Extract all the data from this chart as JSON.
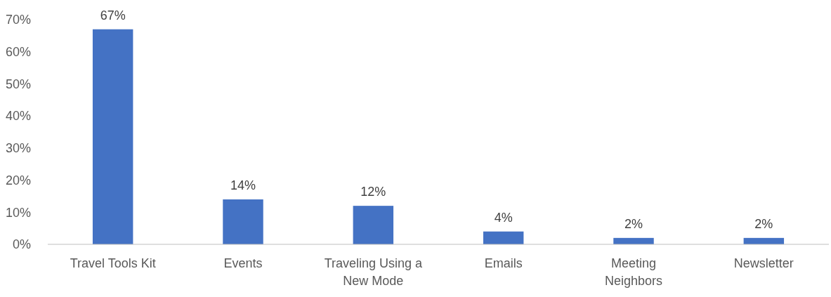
{
  "chart_data": {
    "type": "bar",
    "categories": [
      "Travel Tools Kit",
      "Events",
      "Traveling Using a New Mode",
      "Emails",
      "Meeting Neighbors",
      "Newsletter"
    ],
    "values": [
      67,
      14,
      12,
      4,
      2,
      2
    ],
    "color": "#4472c4",
    "ylim": [
      0,
      70
    ],
    "yticks": [
      {
        "value": 0,
        "label": "0%"
      },
      {
        "value": 10,
        "label": "10%"
      },
      {
        "value": 20,
        "label": "20%"
      },
      {
        "value": 30,
        "label": "30%"
      },
      {
        "value": 40,
        "label": "40%"
      },
      {
        "value": 50,
        "label": "50%"
      },
      {
        "value": 60,
        "label": "60%"
      },
      {
        "value": 70,
        "label": "70%"
      }
    ],
    "value_labels": [
      "67%",
      "14%",
      "12%",
      "4%",
      "2%",
      "2%"
    ],
    "grid": false
  }
}
